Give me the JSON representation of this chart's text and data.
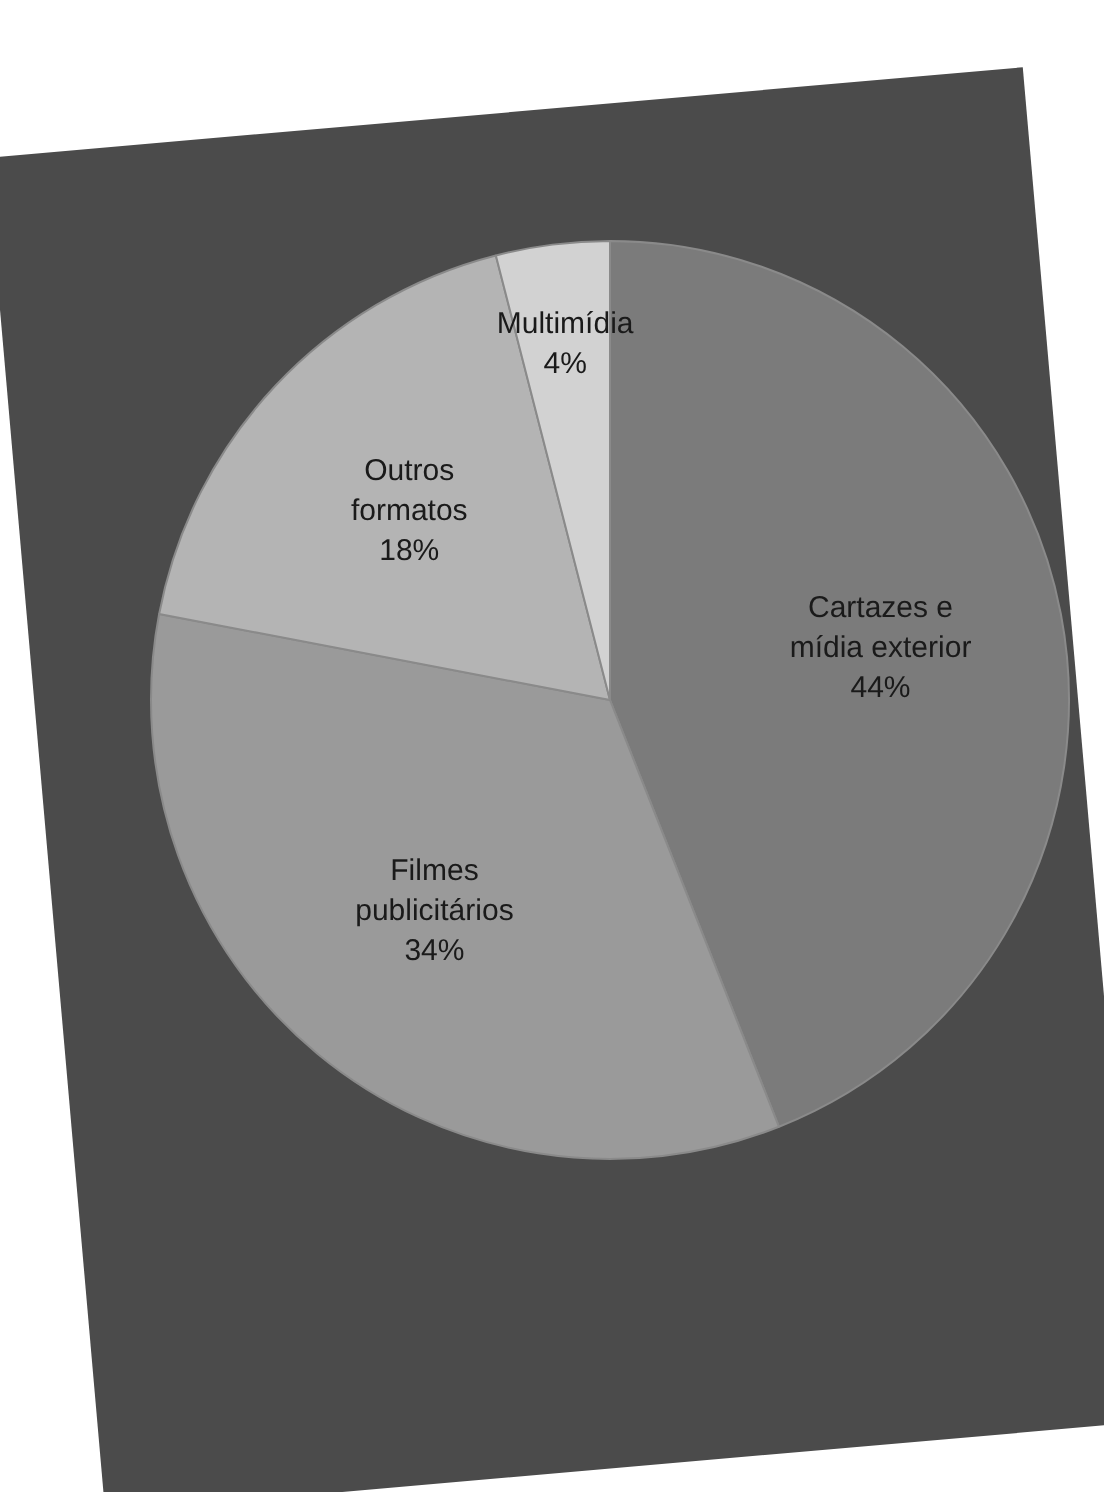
{
  "chart_data": {
    "type": "pie",
    "categories": [
      "Cartazes e mídia exterior",
      "Filmes publicitários",
      "Outros formatos",
      "Multimídia"
    ],
    "values": [
      44,
      34,
      18,
      4
    ],
    "value_labels": [
      "44%",
      "34%",
      "18%",
      "4%"
    ],
    "colors": [
      "#7b7b7b",
      "#9a9a9a",
      "#b4b4b4",
      "#d2d2d2"
    ],
    "legend": false
  }
}
